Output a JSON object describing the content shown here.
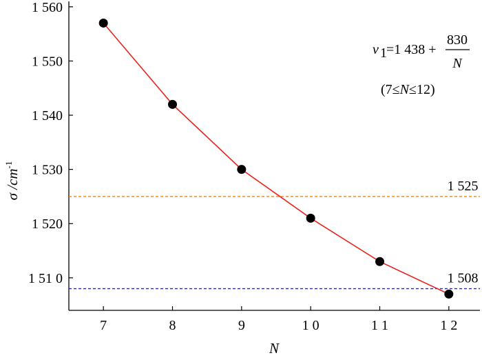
{
  "chart_data": {
    "type": "line",
    "x": [
      7,
      8,
      9,
      10,
      11,
      12
    ],
    "values": [
      1557,
      1542,
      1530,
      1521,
      1513,
      1507
    ],
    "xlim": [
      6.5,
      12.45
    ],
    "ylim": [
      1504,
      1561
    ],
    "xticks": [
      7,
      8,
      9,
      10,
      11,
      12
    ],
    "xtick_labels": [
      "7",
      "8",
      "9",
      "1 0",
      "1 1",
      "1 2"
    ],
    "yticks": [
      1510,
      1520,
      1530,
      1540,
      1550,
      1560
    ],
    "ytick_labels": [
      "1 51 0",
      "1 520",
      "1 530",
      "1 540",
      "1 550",
      "1 560"
    ],
    "xlabel": "N",
    "ylabel": "σ /cm",
    "ylabel_superscript": "-1",
    "grid": false,
    "line_color": "#e8231f",
    "marker_color": "#000000",
    "reference_lines": [
      {
        "value": 1525,
        "label": "1 525",
        "color": "#f0821e"
      },
      {
        "value": 1508,
        "label": "1 508",
        "color": "#2b2b8c"
      }
    ],
    "annotation": {
      "lhs": "v",
      "lhs_subscript": "1",
      "rhs_const": "=1 438 +",
      "numerator": "830",
      "denominator": "N",
      "range_open": "(7≤",
      "range_var": "N",
      "range_close": "≤12)"
    }
  }
}
